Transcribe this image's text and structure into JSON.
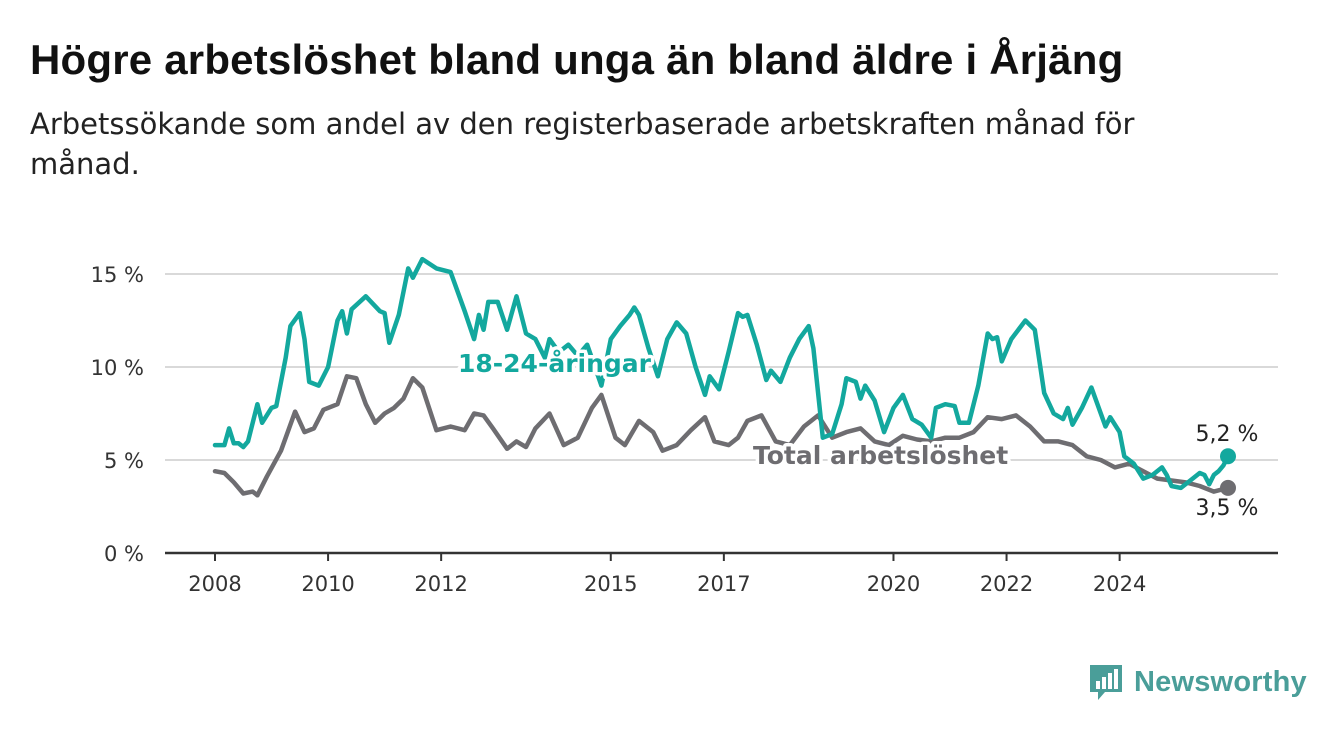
{
  "header": {
    "title": "Högre arbetslöshet bland unga än bland äldre i Årjäng",
    "subtitle": "Arbetssökande som andel av den registerbaserade arbetskraften månad för månad."
  },
  "brand": {
    "name": "Newsworthy",
    "icon": "newsworthy-logo-icon",
    "color": "#4a9e99"
  },
  "chart_data": {
    "type": "line",
    "title": "Högre arbetslöshet bland unga än bland äldre i Årjäng",
    "subtitle": "Arbetssökande som andel av den registerbaserade arbetskraften månad för månad.",
    "xlabel": "",
    "ylabel": "",
    "x_range": [
      "2008-01",
      "2025-12"
    ],
    "ylim": [
      0,
      15
    ],
    "y_ticks": [
      0,
      5,
      10,
      15
    ],
    "y_tick_labels": [
      "0 %",
      "5 %",
      "10 %",
      "15 %"
    ],
    "x_ticks": [
      "2008",
      "2010",
      "2012",
      "2015",
      "2017",
      "2020",
      "2022",
      "2024"
    ],
    "grid": "horizontal",
    "series": [
      {
        "name": "18-24-åringar",
        "color": "#13a89e",
        "end_label": "5,2 %",
        "points": [
          [
            "2008-01",
            5.8
          ],
          [
            "2008-03",
            5.8
          ],
          [
            "2008-04",
            6.7
          ],
          [
            "2008-05",
            5.9
          ],
          [
            "2008-06",
            5.9
          ],
          [
            "2008-07",
            5.7
          ],
          [
            "2008-08",
            6.0
          ],
          [
            "2008-10",
            8.0
          ],
          [
            "2008-11",
            7.0
          ],
          [
            "2009-01",
            7.8
          ],
          [
            "2009-02",
            7.9
          ],
          [
            "2009-04",
            10.5
          ],
          [
            "2009-05",
            12.2
          ],
          [
            "2009-07",
            12.9
          ],
          [
            "2009-08",
            11.5
          ],
          [
            "2009-09",
            9.2
          ],
          [
            "2009-11",
            9.0
          ],
          [
            "2010-01",
            10.0
          ],
          [
            "2010-03",
            12.5
          ],
          [
            "2010-04",
            13.0
          ],
          [
            "2010-05",
            11.8
          ],
          [
            "2010-06",
            13.1
          ],
          [
            "2010-09",
            13.8
          ],
          [
            "2010-12",
            13.0
          ],
          [
            "2011-01",
            12.9
          ],
          [
            "2011-02",
            11.3
          ],
          [
            "2011-04",
            12.8
          ],
          [
            "2011-06",
            15.3
          ],
          [
            "2011-07",
            14.8
          ],
          [
            "2011-09",
            15.8
          ],
          [
            "2011-12",
            15.3
          ],
          [
            "2012-03",
            15.1
          ],
          [
            "2012-06",
            13.0
          ],
          [
            "2012-08",
            11.5
          ],
          [
            "2012-09",
            12.8
          ],
          [
            "2012-10",
            12.0
          ],
          [
            "2012-11",
            13.5
          ],
          [
            "2013-01",
            13.5
          ],
          [
            "2013-03",
            12.0
          ],
          [
            "2013-05",
            13.8
          ],
          [
            "2013-07",
            11.8
          ],
          [
            "2013-09",
            11.5
          ],
          [
            "2013-11",
            10.5
          ],
          [
            "2013-12",
            11.5
          ],
          [
            "2014-02",
            10.8
          ],
          [
            "2014-04",
            11.2
          ],
          [
            "2014-06",
            10.6
          ],
          [
            "2014-08",
            11.2
          ],
          [
            "2014-11",
            9.0
          ],
          [
            "2015-01",
            11.5
          ],
          [
            "2015-03",
            12.2
          ],
          [
            "2015-05",
            12.8
          ],
          [
            "2015-06",
            13.2
          ],
          [
            "2015-07",
            12.8
          ],
          [
            "2015-09",
            11.0
          ],
          [
            "2015-11",
            9.5
          ],
          [
            "2016-01",
            11.5
          ],
          [
            "2016-03",
            12.4
          ],
          [
            "2016-05",
            11.8
          ],
          [
            "2016-07",
            10.0
          ],
          [
            "2016-09",
            8.5
          ],
          [
            "2016-10",
            9.5
          ],
          [
            "2016-12",
            8.8
          ],
          [
            "2017-02",
            10.8
          ],
          [
            "2017-04",
            12.9
          ],
          [
            "2017-05",
            12.7
          ],
          [
            "2017-06",
            12.8
          ],
          [
            "2017-08",
            11.2
          ],
          [
            "2017-10",
            9.3
          ],
          [
            "2017-11",
            9.8
          ],
          [
            "2018-01",
            9.2
          ],
          [
            "2018-03",
            10.5
          ],
          [
            "2018-05",
            11.5
          ],
          [
            "2018-07",
            12.2
          ],
          [
            "2018-08",
            11.0
          ],
          [
            "2018-10",
            6.2
          ],
          [
            "2018-12",
            6.4
          ],
          [
            "2019-02",
            8.0
          ],
          [
            "2019-03",
            9.4
          ],
          [
            "2019-05",
            9.2
          ],
          [
            "2019-06",
            8.3
          ],
          [
            "2019-07",
            9.0
          ],
          [
            "2019-09",
            8.2
          ],
          [
            "2019-11",
            6.5
          ],
          [
            "2020-01",
            7.8
          ],
          [
            "2020-03",
            8.5
          ],
          [
            "2020-05",
            7.2
          ],
          [
            "2020-07",
            6.9
          ],
          [
            "2020-09",
            6.2
          ],
          [
            "2020-10",
            7.8
          ],
          [
            "2020-12",
            8.0
          ],
          [
            "2021-02",
            7.9
          ],
          [
            "2021-03",
            7.0
          ],
          [
            "2021-05",
            7.0
          ],
          [
            "2021-07",
            9.0
          ],
          [
            "2021-09",
            11.8
          ],
          [
            "2021-10",
            11.5
          ],
          [
            "2021-11",
            11.6
          ],
          [
            "2021-12",
            10.3
          ],
          [
            "2022-02",
            11.5
          ],
          [
            "2022-05",
            12.5
          ],
          [
            "2022-07",
            12.0
          ],
          [
            "2022-09",
            8.6
          ],
          [
            "2022-11",
            7.5
          ],
          [
            "2023-01",
            7.2
          ],
          [
            "2023-02",
            7.8
          ],
          [
            "2023-03",
            6.9
          ],
          [
            "2023-05",
            7.8
          ],
          [
            "2023-07",
            8.9
          ],
          [
            "2023-09",
            7.5
          ],
          [
            "2023-10",
            6.8
          ],
          [
            "2023-11",
            7.3
          ],
          [
            "2024-01",
            6.5
          ],
          [
            "2024-02",
            5.2
          ],
          [
            "2024-04",
            4.8
          ],
          [
            "2024-06",
            4.0
          ],
          [
            "2024-08",
            4.2
          ],
          [
            "2024-10",
            4.6
          ],
          [
            "2024-11",
            4.2
          ],
          [
            "2024-12",
            3.6
          ],
          [
            "2025-02",
            3.5
          ],
          [
            "2025-04",
            3.9
          ],
          [
            "2025-06",
            4.3
          ],
          [
            "2025-07",
            4.2
          ],
          [
            "2025-08",
            3.7
          ],
          [
            "2025-09",
            4.2
          ],
          [
            "2025-10",
            4.4
          ],
          [
            "2025-11",
            4.7
          ],
          [
            "2025-12",
            5.2
          ]
        ]
      },
      {
        "name": "Total arbetslöshet",
        "color": "#6e6d71",
        "end_label": "3,5 %",
        "points": [
          [
            "2008-01",
            4.4
          ],
          [
            "2008-03",
            4.3
          ],
          [
            "2008-05",
            3.8
          ],
          [
            "2008-07",
            3.2
          ],
          [
            "2008-09",
            3.3
          ],
          [
            "2008-10",
            3.1
          ],
          [
            "2008-12",
            4.1
          ],
          [
            "2009-03",
            5.5
          ],
          [
            "2009-06",
            7.6
          ],
          [
            "2009-08",
            6.5
          ],
          [
            "2009-10",
            6.7
          ],
          [
            "2009-12",
            7.7
          ],
          [
            "2010-03",
            8.0
          ],
          [
            "2010-05",
            9.5
          ],
          [
            "2010-07",
            9.4
          ],
          [
            "2010-09",
            8.0
          ],
          [
            "2010-11",
            7.0
          ],
          [
            "2011-01",
            7.5
          ],
          [
            "2011-03",
            7.8
          ],
          [
            "2011-05",
            8.3
          ],
          [
            "2011-07",
            9.4
          ],
          [
            "2011-09",
            8.9
          ],
          [
            "2011-12",
            6.6
          ],
          [
            "2012-03",
            6.8
          ],
          [
            "2012-06",
            6.6
          ],
          [
            "2012-08",
            7.5
          ],
          [
            "2012-10",
            7.4
          ],
          [
            "2012-12",
            6.7
          ],
          [
            "2013-03",
            5.6
          ],
          [
            "2013-05",
            6.0
          ],
          [
            "2013-07",
            5.7
          ],
          [
            "2013-09",
            6.7
          ],
          [
            "2013-12",
            7.5
          ],
          [
            "2014-03",
            5.8
          ],
          [
            "2014-06",
            6.2
          ],
          [
            "2014-09",
            7.8
          ],
          [
            "2014-11",
            8.5
          ],
          [
            "2015-02",
            6.2
          ],
          [
            "2015-04",
            5.8
          ],
          [
            "2015-07",
            7.1
          ],
          [
            "2015-10",
            6.5
          ],
          [
            "2015-12",
            5.5
          ],
          [
            "2016-03",
            5.8
          ],
          [
            "2016-06",
            6.6
          ],
          [
            "2016-09",
            7.3
          ],
          [
            "2016-11",
            6.0
          ],
          [
            "2017-02",
            5.8
          ],
          [
            "2017-04",
            6.2
          ],
          [
            "2017-06",
            7.1
          ],
          [
            "2017-09",
            7.4
          ],
          [
            "2017-12",
            6.0
          ],
          [
            "2018-03",
            5.8
          ],
          [
            "2018-06",
            6.8
          ],
          [
            "2018-09",
            7.4
          ],
          [
            "2018-12",
            6.2
          ],
          [
            "2019-03",
            6.5
          ],
          [
            "2019-06",
            6.7
          ],
          [
            "2019-09",
            6.0
          ],
          [
            "2019-12",
            5.8
          ],
          [
            "2020-03",
            6.3
          ],
          [
            "2020-06",
            6.1
          ],
          [
            "2020-09",
            6.0
          ],
          [
            "2020-12",
            6.2
          ],
          [
            "2021-03",
            6.2
          ],
          [
            "2021-06",
            6.5
          ],
          [
            "2021-09",
            7.3
          ],
          [
            "2021-12",
            7.2
          ],
          [
            "2022-03",
            7.4
          ],
          [
            "2022-06",
            6.8
          ],
          [
            "2022-09",
            6.0
          ],
          [
            "2022-12",
            6.0
          ],
          [
            "2023-03",
            5.8
          ],
          [
            "2023-06",
            5.2
          ],
          [
            "2023-09",
            5.0
          ],
          [
            "2023-12",
            4.6
          ],
          [
            "2024-03",
            4.8
          ],
          [
            "2024-06",
            4.4
          ],
          [
            "2024-09",
            4.0
          ],
          [
            "2024-12",
            3.9
          ],
          [
            "2025-03",
            3.8
          ],
          [
            "2025-06",
            3.6
          ],
          [
            "2025-09",
            3.3
          ],
          [
            "2025-12",
            3.5
          ]
        ]
      }
    ]
  }
}
